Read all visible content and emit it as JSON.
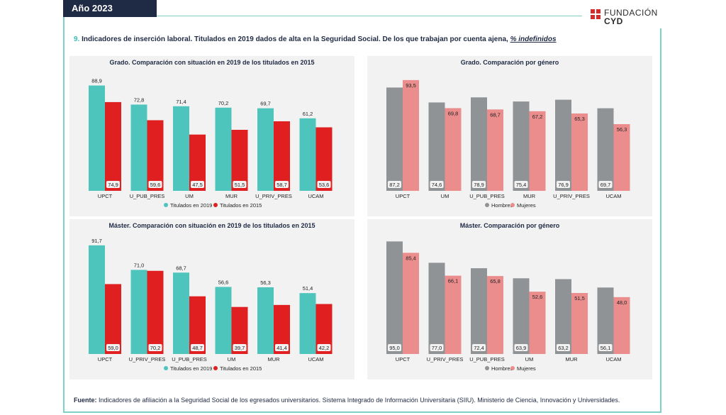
{
  "header": {
    "year": "Año 2023",
    "logo_line1": "FUNDACIÓN",
    "logo_line2": "CYD",
    "brand_color": "#d62a2a",
    "accent_color": "#38bdb3"
  },
  "heading": {
    "number": "9.",
    "text": " Indicadores de inserción laboral. Titulados en 2019 dados de alta en la Seguridad Social. De los que trabajan por cuenta ajena, ",
    "underlined": "% indefinidos"
  },
  "chart_data": [
    {
      "type": "bar",
      "title": "Grado. Comparación con situación en 2019 de los titulados en 2015",
      "categories": [
        "UPCT",
        "U_PUB_PRES",
        "UM",
        "MUR",
        "U_PRIV_PRES",
        "UCAM"
      ],
      "series": [
        {
          "name": "Titulados en 2019",
          "color": "#4dc5bd",
          "values": [
            88.9,
            72.8,
            71.4,
            70.2,
            69.7,
            61.2
          ]
        },
        {
          "name": "Titulados en 2015",
          "color": "#e02020",
          "values": [
            74.9,
            59.6,
            47.5,
            51.5,
            58.7,
            53.6
          ]
        }
      ],
      "labels": [
        [
          "88,9",
          "72,8",
          "71,4",
          "70,2",
          "69,7",
          "61,2"
        ],
        [
          "74,9",
          "59,6",
          "47,5",
          "51,5",
          "58,7",
          "53,6"
        ]
      ],
      "label_mode": "compare",
      "ylim": [
        0,
        100
      ],
      "legend": "bottom"
    },
    {
      "type": "bar",
      "title": "Grado. Comparación por género",
      "categories": [
        "UPCT",
        "UM",
        "U_PUB_PRES",
        "MUR",
        "U_PRIV_PRES",
        "UCAM"
      ],
      "series": [
        {
          "name": "Hombres",
          "color": "#8f9396",
          "values": [
            87.2,
            74.6,
            78.9,
            75.4,
            76.9,
            69.7
          ]
        },
        {
          "name": "Mujeres",
          "color": "#eb8d8d",
          "values": [
            93.5,
            69.8,
            68.7,
            67.2,
            65.3,
            56.3
          ]
        }
      ],
      "labels": [
        [
          "87,2",
          "74,6",
          "78,9",
          "75,4",
          "76,9",
          "69,7"
        ],
        [
          "93,5",
          "69,8",
          "68,7",
          "67,2",
          "65,3",
          "56,3"
        ]
      ],
      "label_mode": "gender",
      "ylim": [
        0,
        100
      ],
      "legend": "bottom"
    },
    {
      "type": "bar",
      "title": "Máster. Comparación con situación en 2019 de los titulados en 2015",
      "categories": [
        "UPCT",
        "U_PRIV_PRES",
        "U_PUB_PRES",
        "UM",
        "MUR",
        "UCAM"
      ],
      "series": [
        {
          "name": "Titulados en 2019",
          "color": "#4dc5bd",
          "values": [
            91.7,
            71.0,
            68.7,
            56.6,
            56.3,
            51.4
          ]
        },
        {
          "name": "Titulados en 2015",
          "color": "#e02020",
          "values": [
            59.0,
            70.2,
            48.7,
            39.7,
            41.4,
            42.2
          ]
        }
      ],
      "labels": [
        [
          "91,7",
          "71,0",
          "68,7",
          "56,6",
          "56,3",
          "51,4"
        ],
        [
          "59,0",
          "70,2",
          "48,7",
          "39,7",
          "41,4",
          "42,2"
        ]
      ],
      "label_mode": "compare",
      "ylim": [
        0,
        100
      ],
      "legend": "bottom"
    },
    {
      "type": "bar",
      "title": "Máster. Comparación por género",
      "categories": [
        "UPCT",
        "U_PRIV_PRES",
        "U_PUB_PRES",
        "UM",
        "MUR",
        "UCAM"
      ],
      "series": [
        {
          "name": "Hombres",
          "color": "#8f9396",
          "values": [
            95.0,
            77.0,
            72.4,
            63.9,
            63.2,
            56.1
          ]
        },
        {
          "name": "Mujeres",
          "color": "#eb8d8d",
          "values": [
            85.4,
            66.1,
            65.8,
            52.6,
            51.5,
            48.0
          ]
        }
      ],
      "labels": [
        [
          "95,0",
          "77,0",
          "72,4",
          "63,9",
          "63,2",
          "56,1"
        ],
        [
          "85,4",
          "66,1",
          "65,8",
          "52,6",
          "51,5",
          "48,0"
        ]
      ],
      "label_mode": "gender",
      "ylim": [
        0,
        100
      ],
      "legend": "bottom"
    }
  ],
  "footer": {
    "label": "Fuente:",
    "text": " Indicadores de afiliación a la Seguridad Social de los egresados universitarios. Sistema Integrado de Información Universitaria (SIIU). Ministerio de Ciencia, Innovación y Universidades."
  }
}
